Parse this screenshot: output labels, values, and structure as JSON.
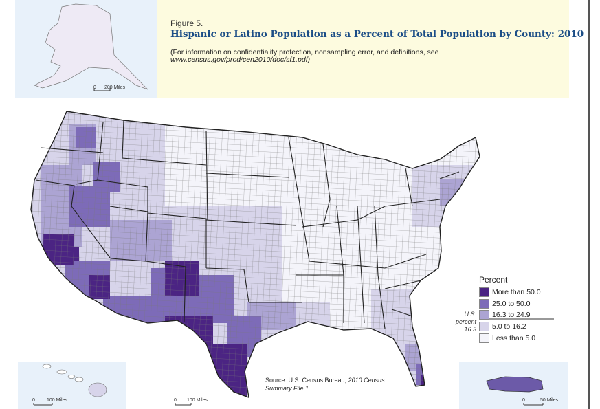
{
  "figure_label": "Figure 5.",
  "title": "Hispanic or Latino Population as a Percent of Total Population by County: 2010",
  "note_line1": "(For information on confidentiality protection, nonsampling error, and definitions, see",
  "note_line2": "www.census.gov/prod/cen2010/doc/sf1.pdf)",
  "insets": {
    "alaska": {
      "scale_zero": "0",
      "scale_label": "200 Miles"
    },
    "hawaii": {
      "scale_zero": "0",
      "scale_label": "100 Miles"
    },
    "lower48": {
      "scale_zero": "0",
      "scale_label": "100 Miles"
    },
    "puerto_rico": {
      "scale_zero": "0",
      "scale_label": "50 Miles"
    }
  },
  "legend": {
    "title": "Percent",
    "classes": [
      {
        "label": "More than 50.0",
        "color": "#4b2483"
      },
      {
        "label": "25.0 to 50.0",
        "color": "#7d6bb8"
      },
      {
        "label": "16.3 to 24.9",
        "color": "#aca4d3"
      },
      {
        "label": "5.0 to 16.2",
        "color": "#d7d4ea"
      },
      {
        "label": "Less than 5.0",
        "color": "#f4f4fa"
      }
    ],
    "us_percent_label": "U.S. percent",
    "us_percent_value": "16.3"
  },
  "source": {
    "prefix": "Source:  U.S. Census Bureau, ",
    "title_part1": "2010 Census",
    "title_part2": "Summary File 1."
  },
  "colors": {
    "title": "#1b4d86",
    "title_box": "#fdfbdf",
    "inset_bg": "#e8f1fa",
    "state_border": "#222222"
  }
}
